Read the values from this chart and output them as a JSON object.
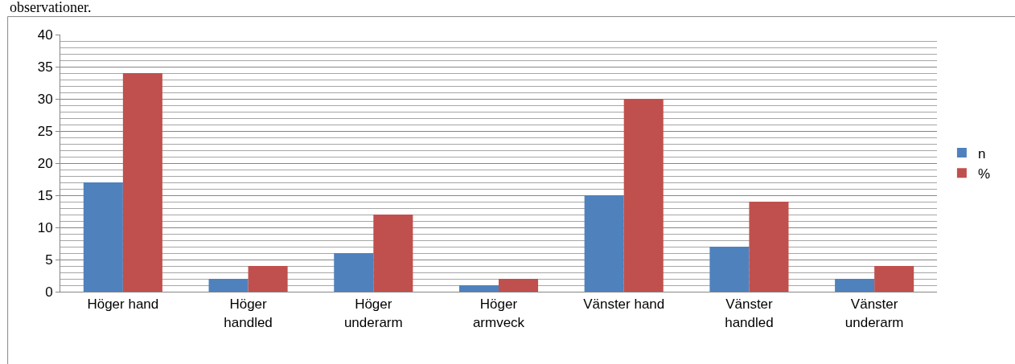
{
  "chart_data": {
    "type": "bar",
    "categories": [
      "Höger hand",
      "Höger handled",
      "Höger underarm",
      "Höger armveck",
      "Vänster hand",
      "Vänster handled",
      "Vänster underarm"
    ],
    "series": [
      {
        "name": "n",
        "color": "#4f81bd",
        "values": [
          17,
          2,
          6,
          1,
          15,
          7,
          2
        ]
      },
      {
        "name": "%",
        "color": "#c0504d",
        "values": [
          34,
          4,
          12,
          2,
          30,
          14,
          4
        ]
      }
    ],
    "ylim": [
      0,
      40
    ],
    "yticks": [
      0,
      5,
      10,
      15,
      20,
      25,
      30,
      35,
      40
    ],
    "grid": "y",
    "legend": "right",
    "annotations": [
      "observationer."
    ]
  }
}
